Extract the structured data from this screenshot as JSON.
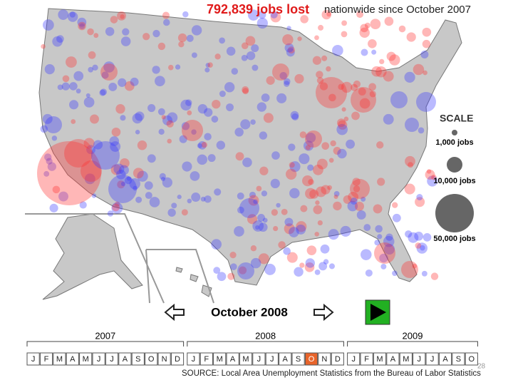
{
  "header": {
    "title": "792,839 jobs lost",
    "subtitle": "nationwide since October 2007"
  },
  "legend": {
    "title": "SCALE",
    "items": [
      "1,000 jobs",
      "10,000 jobs",
      "50,000 jobs"
    ]
  },
  "navigation": {
    "current": "October 2008"
  },
  "timeline": [
    {
      "year": "2007",
      "months": [
        "J",
        "F",
        "M",
        "A",
        "M",
        "J",
        "J",
        "A",
        "S",
        "O",
        "N",
        "D"
      ]
    },
    {
      "year": "2008",
      "months": [
        "J",
        "F",
        "M",
        "A",
        "M",
        "J",
        "J",
        "A",
        "S",
        "O",
        "N",
        "D"
      ]
    },
    {
      "year": "2009",
      "months": [
        "J",
        "F",
        "M",
        "A",
        "M",
        "J",
        "J",
        "A",
        "S",
        "O"
      ]
    }
  ],
  "highlight": [
    1,
    9
  ],
  "source": "SOURCE: Local Area Unemployment Statistics from the Bureau of Labor Statistics",
  "page_number": "28"
}
